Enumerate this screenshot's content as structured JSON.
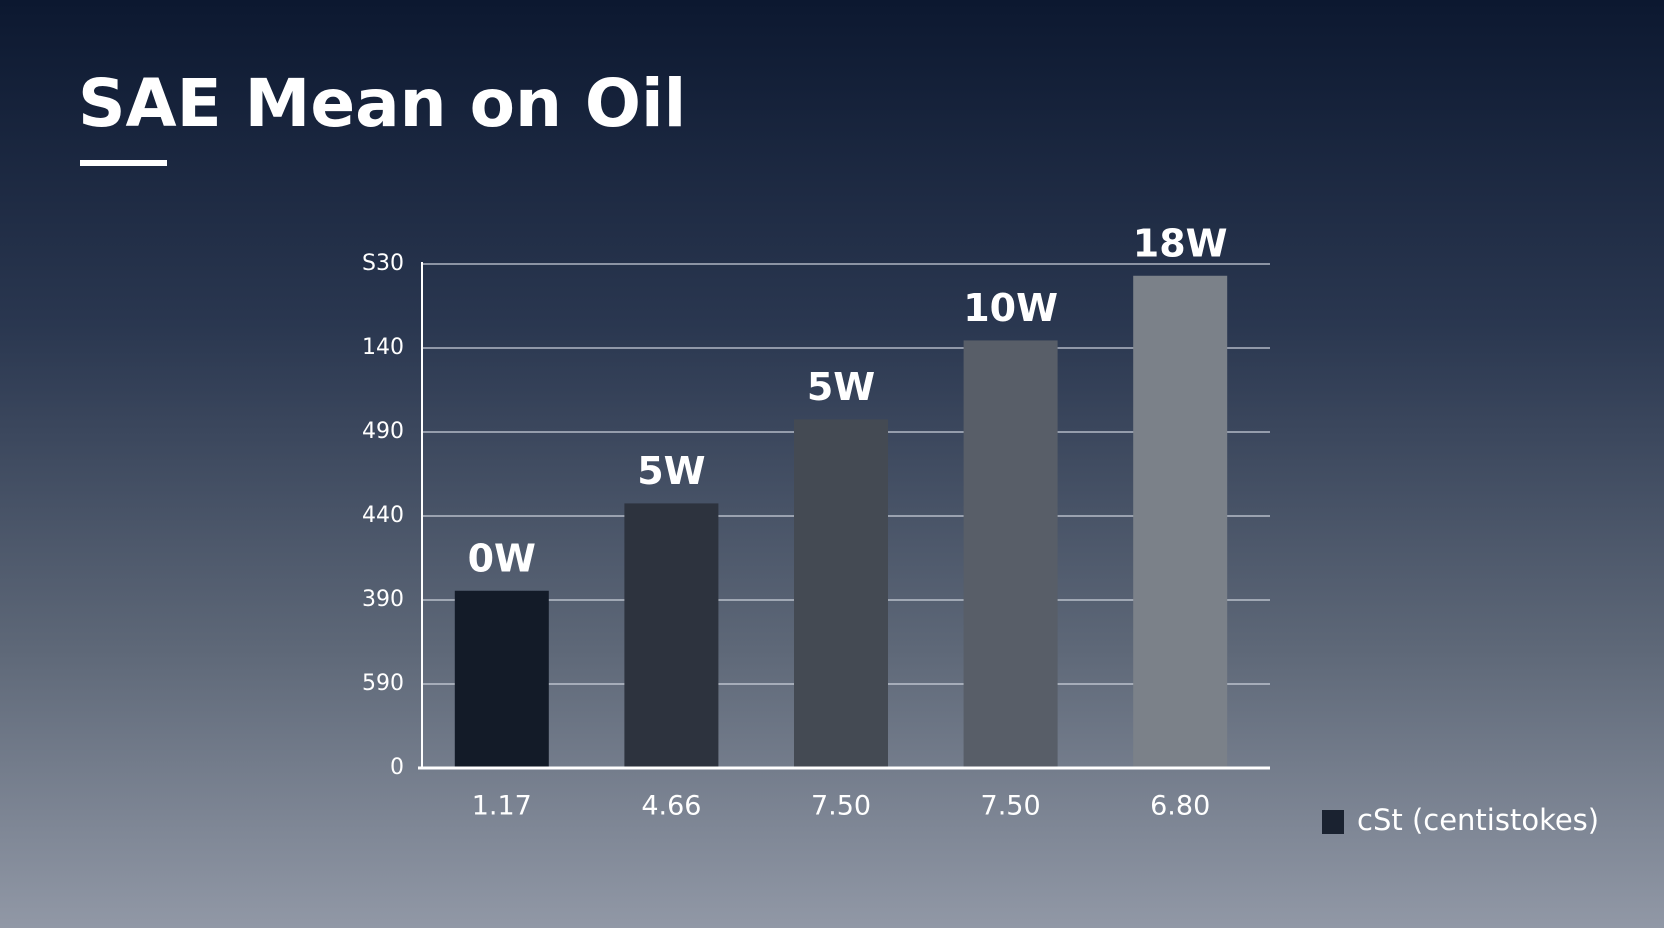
{
  "chart_data": {
    "type": "bar",
    "title": "SAE Mean on Oil",
    "categories": [
      "1.17",
      "4.66",
      "7.50",
      "7.50",
      "6.80"
    ],
    "values": [
      2.11,
      3.15,
      4.15,
      5.09,
      5.86
    ],
    "bar_labels": [
      "0W",
      "5W",
      "5W",
      "10W",
      "18W"
    ],
    "colors": [
      "#131b28",
      "#2d333e",
      "#444a53",
      "#585e68",
      "#7b8189"
    ],
    "legend": {
      "name": "cSt (centistokes)",
      "color": "#1a2230",
      "position": "bottom-right"
    },
    "ylim": [
      0,
      6
    ],
    "yticks": [
      {
        "value": 0,
        "label": "0"
      },
      {
        "value": 1,
        "label": "590"
      },
      {
        "value": 2,
        "label": "390"
      },
      {
        "value": 3,
        "label": "440"
      },
      {
        "value": 4,
        "label": "490"
      },
      {
        "value": 5,
        "label": "140"
      },
      {
        "value": 6,
        "label": "S30"
      }
    ],
    "grid": true
  }
}
